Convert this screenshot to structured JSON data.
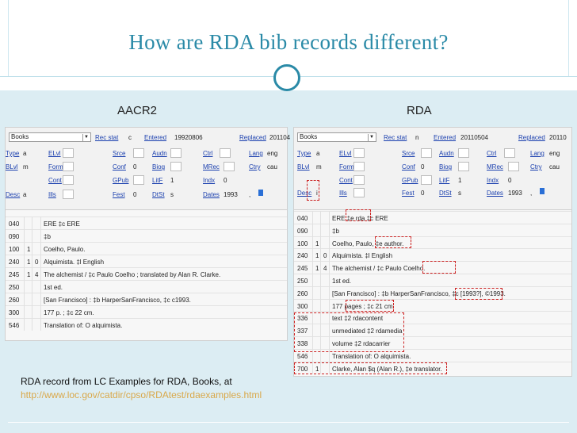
{
  "slide": {
    "title": "How are RDA bib records different?",
    "label_left": "AACR2",
    "label_right": "RDA",
    "caption_line1": "RDA record from LC Examples for RDA, Books, at",
    "caption_url": "http://www.loc.gov/catdir/cpso/RDAtest/rdaexamples.html"
  },
  "aacr2": {
    "type_select": "Books",
    "fixed": {
      "rec_stat_label": "Rec stat",
      "rec_stat": "c",
      "entered_label": "Entered",
      "entered": "19920806",
      "replaced_label": "Replaced",
      "replaced": "201104",
      "type_label": "Type",
      "type": "a",
      "elvl_label": "ELvl",
      "srce_label": "Srce",
      "audn_label": "Audn",
      "ctrl_label": "Ctrl",
      "lang_label": "Lang",
      "lang": "eng",
      "blvl_label": "BLvl",
      "blvl": "m",
      "form_label": "Form",
      "conf_label": "Conf",
      "conf": "0",
      "biog_label": "Biog",
      "mrec_label": "MRec",
      "ctry_label": "Ctry",
      "ctry": "cau",
      "cont_label": "Cont",
      "gpub_label": "GPub",
      "litf_label": "LitF",
      "litf": "1",
      "indx_label": "Indx",
      "indx": "0",
      "desc_label": "Desc",
      "desc": "a",
      "ills_label": "Ills",
      "fest_label": "Fest",
      "fest": "0",
      "dtst_label": "DtSt",
      "dtst": "s",
      "dates_label": "Dates",
      "dates": "1993",
      "dates_sep": ","
    },
    "fields": [
      {
        "tag": "040",
        "ind1": "",
        "ind2": "",
        "text": "ERE ‡c ERE"
      },
      {
        "tag": "090",
        "ind1": "",
        "ind2": "",
        "text": "‡b"
      },
      {
        "tag": "100",
        "ind1": "1",
        "ind2": "",
        "text": "Coelho, Paulo."
      },
      {
        "tag": "240",
        "ind1": "1",
        "ind2": "0",
        "text": "Alquimista. ‡l English"
      },
      {
        "tag": "245",
        "ind1": "1",
        "ind2": "4",
        "text": "The alchemist / ‡c Paulo Coelho ; translated by Alan R. Clarke."
      },
      {
        "tag": "250",
        "ind1": "",
        "ind2": "",
        "text": "1st ed."
      },
      {
        "tag": "260",
        "ind1": "",
        "ind2": "",
        "text": "[San Francisco] : ‡b HarperSanFrancisco, ‡c c1993."
      },
      {
        "tag": "300",
        "ind1": "",
        "ind2": "",
        "text": "177 p. ; ‡c 22 cm."
      },
      {
        "tag": "546",
        "ind1": "",
        "ind2": "",
        "text": "Translation of: O alquimista."
      }
    ]
  },
  "rda": {
    "type_select": "Books",
    "fixed": {
      "rec_stat_label": "Rec stat",
      "rec_stat": "n",
      "entered_label": "Entered",
      "entered": "20110504",
      "replaced_label": "Replaced",
      "replaced": "20110",
      "type_label": "Type",
      "type": "a",
      "elvl_label": "ELvl",
      "srce_label": "Srce",
      "audn_label": "Audn",
      "ctrl_label": "Ctrl",
      "lang_label": "Lang",
      "lang": "eng",
      "blvl_label": "BLvl",
      "blvl": "m",
      "form_label": "Form",
      "conf_label": "Conf",
      "conf": "0",
      "biog_label": "Biog",
      "mrec_label": "MRec",
      "ctry_label": "Ctry",
      "ctry": "cau",
      "cont_label": "Cont",
      "gpub_label": "GPub",
      "litf_label": "LitF",
      "litf": "1",
      "indx_label": "Indx",
      "indx": "0",
      "desc_label": "Desc",
      "desc": "i",
      "ills_label": "Ills",
      "fest_label": "Fest",
      "fest": "0",
      "dtst_label": "DtSt",
      "dtst": "s",
      "dates_label": "Dates",
      "dates": "1993",
      "dates_sep": ","
    },
    "fields": [
      {
        "tag": "040",
        "ind1": "",
        "ind2": "",
        "text": "ERE ‡e rda ‡c ERE"
      },
      {
        "tag": "090",
        "ind1": "",
        "ind2": "",
        "text": "‡b"
      },
      {
        "tag": "100",
        "ind1": "1",
        "ind2": "",
        "text": "Coelho, Paulo, ‡e author."
      },
      {
        "tag": "240",
        "ind1": "1",
        "ind2": "0",
        "text": "Alquimista. ‡l English"
      },
      {
        "tag": "245",
        "ind1": "1",
        "ind2": "4",
        "text": "The alchemist / ‡c Paulo Coelho."
      },
      {
        "tag": "250",
        "ind1": "",
        "ind2": "",
        "text": "1st ed."
      },
      {
        "tag": "260",
        "ind1": "",
        "ind2": "",
        "text": "[San Francisco] : ‡b HarperSanFrancisco, ‡c [1993?], ©1993."
      },
      {
        "tag": "300",
        "ind1": "",
        "ind2": "",
        "text": "177 pages ; ‡c 21 cm."
      },
      {
        "tag": "336",
        "ind1": "",
        "ind2": "",
        "text": "text ‡2 rdacontent"
      },
      {
        "tag": "337",
        "ind1": "",
        "ind2": "",
        "text": "unmediated ‡2 rdamedia"
      },
      {
        "tag": "338",
        "ind1": "",
        "ind2": "",
        "text": "volume ‡2 rdacarrier"
      },
      {
        "tag": "546",
        "ind1": "",
        "ind2": "",
        "text": "Translation of: O alquimista."
      },
      {
        "tag": "700",
        "ind1": "1",
        "ind2": "",
        "text": "Clarke, Alan $q (Alan R.), ‡e translator."
      }
    ]
  },
  "colors": {
    "title": "#2a8aa7",
    "band": "#dcedf3",
    "link": "#1a3fae",
    "highlight": "#cc2222",
    "url": "#d9a84a"
  }
}
